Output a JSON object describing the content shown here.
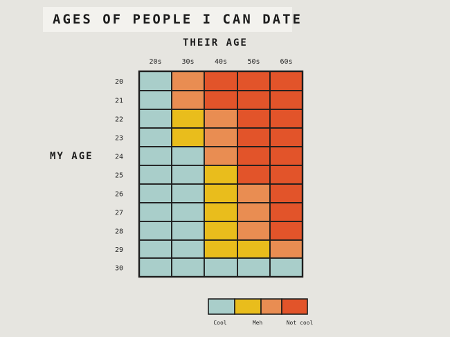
{
  "chart_data": {
    "type": "heatmap",
    "title": "AGES OF PEOPLE I CAN DATE",
    "xlabel": "THEIR AGE",
    "ylabel": "MY AGE",
    "x_categories": [
      "20s",
      "30s",
      "40s",
      "50s",
      "60s"
    ],
    "y_categories": [
      "20",
      "21",
      "22",
      "23",
      "24",
      "25",
      "26",
      "27",
      "28",
      "29",
      "30"
    ],
    "levels": [
      "Cool",
      "Meh",
      "Not cool"
    ],
    "colors": {
      "Cool": "#a9ceca",
      "Meh": "#e9bd1c",
      "MehNotCool": "#e98d52",
      "NotCool": "#e2542a"
    },
    "values": [
      [
        0,
        2,
        3,
        3,
        3
      ],
      [
        0,
        2,
        3,
        3,
        3
      ],
      [
        0,
        1,
        2,
        3,
        3
      ],
      [
        0,
        1,
        2,
        3,
        3
      ],
      [
        0,
        0,
        2,
        3,
        3
      ],
      [
        0,
        0,
        1,
        3,
        3
      ],
      [
        0,
        0,
        1,
        2,
        3
      ],
      [
        0,
        0,
        1,
        2,
        3
      ],
      [
        0,
        0,
        1,
        2,
        3
      ],
      [
        0,
        0,
        1,
        1,
        2
      ],
      [
        0,
        0,
        0,
        0,
        0
      ]
    ],
    "legend": {
      "position": "bottom",
      "colors": [
        "#a9ceca",
        "#e9bd1c",
        "#e98d52",
        "#e2542a"
      ],
      "labels": [
        "Cool",
        "Meh",
        "Not cool"
      ]
    }
  }
}
